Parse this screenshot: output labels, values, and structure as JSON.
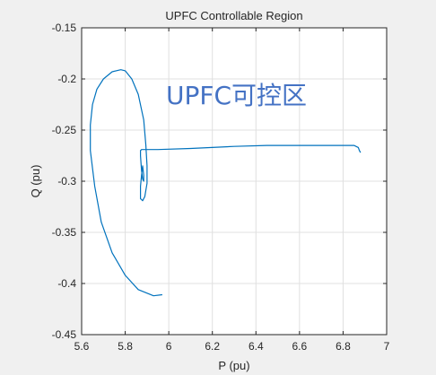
{
  "chart_data": {
    "type": "line",
    "title": "UPFC Controllable Region",
    "xlabel": "P (pu)",
    "ylabel": "Q (pu)",
    "xlim": [
      5.6,
      7.0
    ],
    "ylim": [
      -0.45,
      -0.15
    ],
    "xticks": [
      "5.6",
      "5.8",
      "6",
      "6.2",
      "6.4",
      "6.6",
      "6.8",
      "7"
    ],
    "yticks": [
      "-0.15",
      "-0.2",
      "-0.25",
      "-0.3",
      "-0.35",
      "-0.4",
      "-0.45"
    ],
    "grid": true,
    "annotation": "UPFC可控区",
    "line_color": "#0072bd",
    "series": [
      {
        "x": [
          5.97,
          5.93,
          5.86,
          5.8,
          5.74,
          5.69,
          5.66,
          5.64,
          5.64,
          5.65,
          5.67,
          5.7,
          5.74,
          5.78,
          5.8,
          5.83,
          5.86,
          5.885,
          5.895,
          5.9,
          5.9,
          5.89,
          5.88,
          5.87,
          5.87,
          5.875,
          5.88,
          5.885,
          5.885,
          5.88,
          5.875,
          5.87,
          5.87,
          5.875,
          5.88,
          5.95,
          6.1,
          6.3,
          6.45,
          6.6,
          6.75,
          6.85,
          6.87,
          6.875,
          6.88
        ],
        "y": [
          -0.411,
          -0.412,
          -0.406,
          -0.392,
          -0.37,
          -0.34,
          -0.305,
          -0.27,
          -0.245,
          -0.225,
          -0.21,
          -0.2,
          -0.193,
          -0.191,
          -0.192,
          -0.2,
          -0.215,
          -0.24,
          -0.265,
          -0.285,
          -0.302,
          -0.315,
          -0.319,
          -0.317,
          -0.305,
          -0.294,
          -0.285,
          -0.294,
          -0.3,
          -0.298,
          -0.29,
          -0.275,
          -0.27,
          -0.269,
          -0.269,
          -0.269,
          -0.268,
          -0.266,
          -0.265,
          -0.265,
          -0.265,
          -0.265,
          -0.267,
          -0.27,
          -0.272
        ]
      }
    ]
  }
}
